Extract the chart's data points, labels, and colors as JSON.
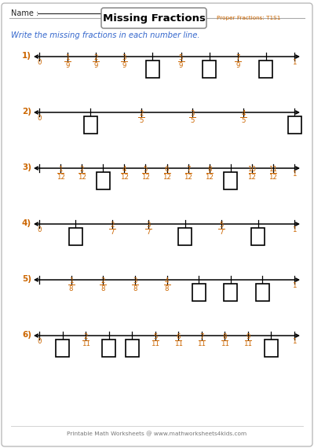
{
  "title": "Missing Fractions",
  "subtitle": "Proper Fractions: T1S1",
  "name_label": "Name : ",
  "instruction": "Write the missing fractions in each number line.",
  "background_color": "#ffffff",
  "border_color": "#bbbbbb",
  "title_color": "#000000",
  "subtitle_color": "#cc6600",
  "instruction_color": "#3366cc",
  "fraction_color": "#cc6600",
  "problems": [
    {
      "number": "1)",
      "total_ticks": 9,
      "shown_labels": {
        "0": "0",
        "1": "1/9",
        "2": "2/9",
        "3": "3/9",
        "5": "5/9",
        "7": "7/9",
        "9": "1"
      },
      "blank": [
        4,
        6,
        8
      ]
    },
    {
      "number": "2)",
      "total_ticks": 5,
      "shown_labels": {
        "0": "0",
        "2": "2/5",
        "3": "3/5",
        "4": "4/5"
      },
      "blank": [
        1,
        5
      ]
    },
    {
      "number": "3)",
      "total_ticks": 12,
      "shown_labels": {
        "1": "1/12",
        "2": "2/12",
        "4": "4/12",
        "5": "5/12",
        "6": "6/12",
        "7": "7/12",
        "8": "8/12",
        "10": "10/12",
        "11": "11/12",
        "12": "1"
      },
      "blank": [
        3,
        9
      ]
    },
    {
      "number": "4)",
      "total_ticks": 7,
      "shown_labels": {
        "0": "0",
        "2": "2/7",
        "3": "3/7",
        "5": "5/7",
        "7": "1"
      },
      "blank": [
        1,
        4,
        6
      ]
    },
    {
      "number": "5)",
      "total_ticks": 8,
      "shown_labels": {
        "1": "1/8",
        "2": "2/8",
        "3": "3/8",
        "4": "4/8",
        "8": "1"
      },
      "blank": [
        5,
        6,
        7
      ]
    },
    {
      "number": "6)",
      "total_ticks": 11,
      "shown_labels": {
        "0": "0",
        "2": "2/11",
        "5": "5/11",
        "6": "6/11",
        "7": "7/11",
        "8": "8/11",
        "9": "9/11",
        "11": "1"
      },
      "blank": [
        1,
        3,
        4,
        10
      ]
    }
  ]
}
